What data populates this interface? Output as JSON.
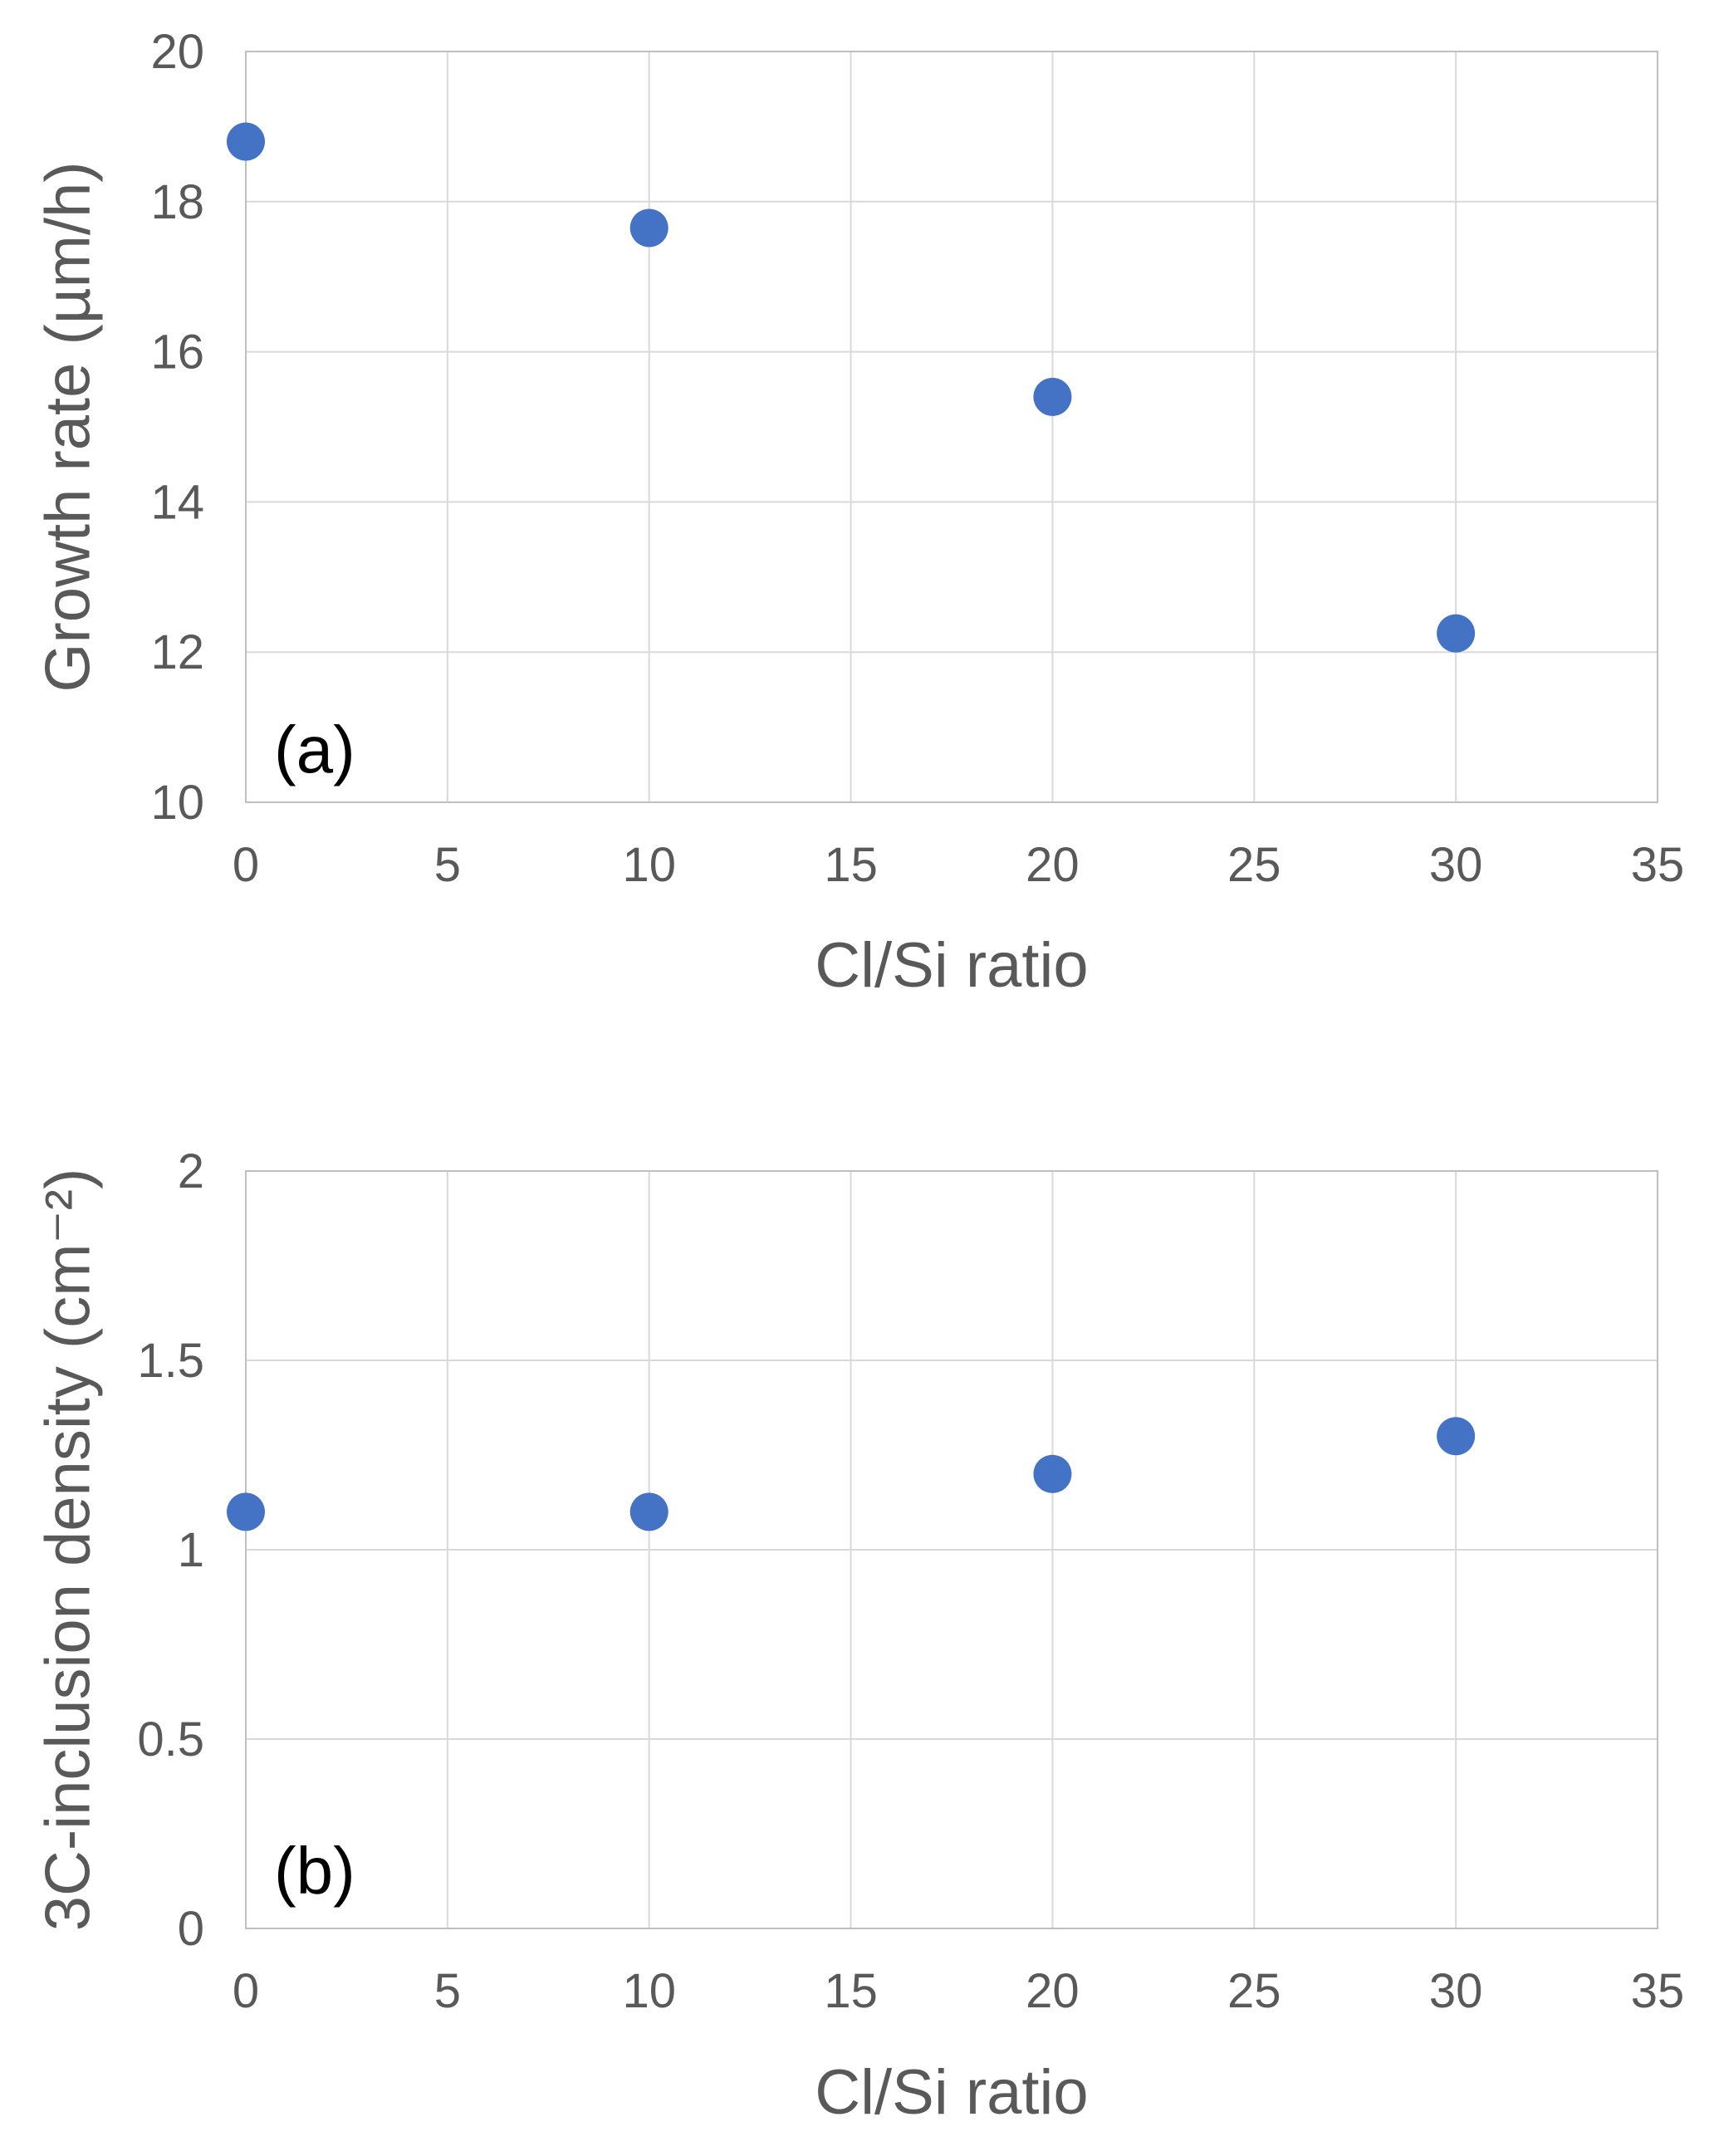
{
  "chart_data": [
    {
      "type": "scatter",
      "panel_label": "(a)",
      "title": "",
      "xlabel": "Cl/Si ratio",
      "ylabel": "Growth rate (µm/h)",
      "xlim": [
        0,
        35
      ],
      "ylim": [
        10,
        20
      ],
      "xticks": [
        "0",
        "5",
        "10",
        "15",
        "20",
        "25",
        "30",
        "35"
      ],
      "yticks": [
        "10",
        "12",
        "14",
        "16",
        "18",
        "20"
      ],
      "grid": true,
      "series": [
        {
          "name": "Growth rate",
          "color": "#4472c4",
          "x": [
            0,
            10,
            20,
            30
          ],
          "y": [
            18.8,
            17.65,
            15.4,
            12.25
          ]
        }
      ]
    },
    {
      "type": "scatter",
      "panel_label": "(b)",
      "title": "",
      "xlabel": "Cl/Si ratio",
      "ylabel": "3C-inclusion density (cm⁻²)",
      "xlim": [
        0,
        35
      ],
      "ylim": [
        0,
        2
      ],
      "xticks": [
        "0",
        "5",
        "10",
        "15",
        "20",
        "25",
        "30",
        "35"
      ],
      "yticks": [
        "0",
        "0.5",
        "1",
        "1.5",
        "2"
      ],
      "grid": true,
      "series": [
        {
          "name": "3C-inclusion density",
          "color": "#4472c4",
          "x": [
            0,
            10,
            20,
            30
          ],
          "y": [
            1.1,
            1.1,
            1.2,
            1.3
          ]
        }
      ]
    }
  ]
}
